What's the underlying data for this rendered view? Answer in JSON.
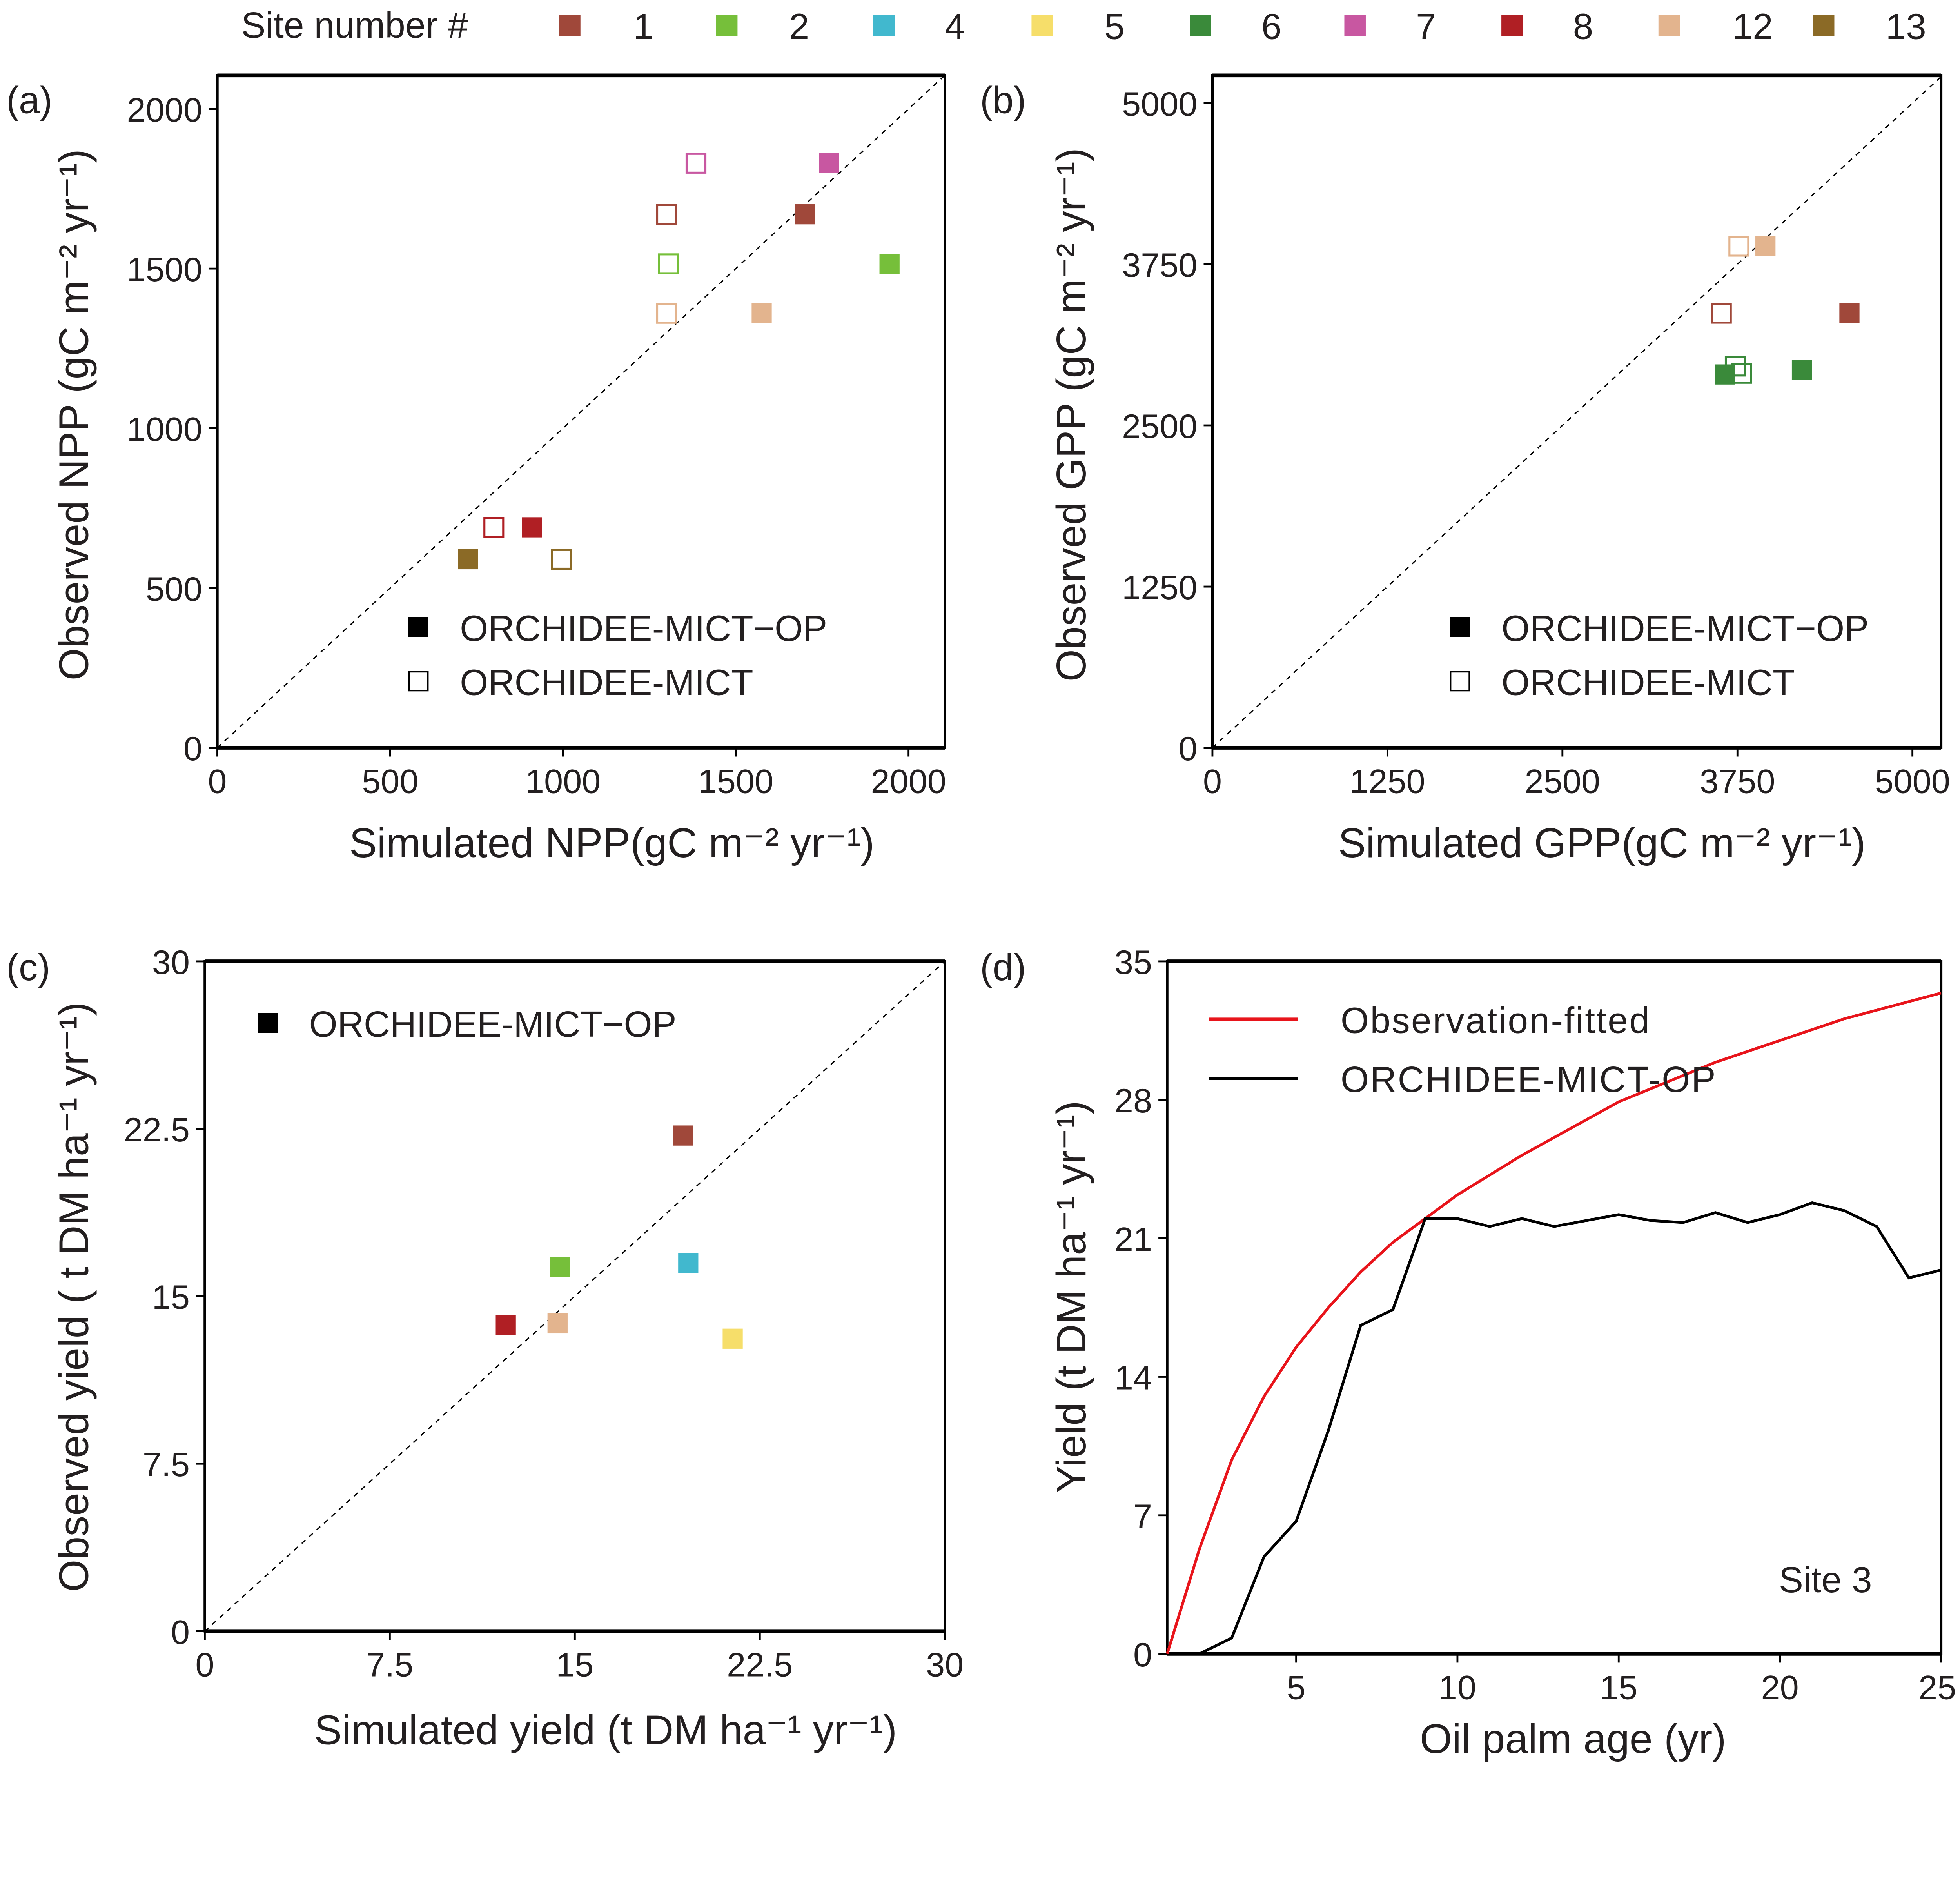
{
  "site_legend": {
    "title": "Site number #",
    "sites": [
      {
        "label": "1",
        "color": "#A0483A"
      },
      {
        "label": "2",
        "color": "#76BF3A"
      },
      {
        "label": "4",
        "color": "#41B8CE"
      },
      {
        "label": "5",
        "color": "#F6DE6A"
      },
      {
        "label": "6",
        "color": "#3A8A3A"
      },
      {
        "label": "7",
        "color": "#C857A1"
      },
      {
        "label": "8",
        "color": "#B01F24"
      },
      {
        "label": "12",
        "color": "#E3B48E"
      },
      {
        "label": "13",
        "color": "#8B6A26"
      }
    ]
  },
  "chart_data": [
    {
      "panel": "(a)",
      "type": "scatter",
      "xlabel": "Simulated NPP(gC m⁻² yr⁻¹)",
      "ylabel": "Observed NPP (gC m⁻² yr⁻¹)",
      "xlim": [
        0,
        2105
      ],
      "ylim": [
        0,
        2105
      ],
      "xticks": [
        0,
        500,
        1000,
        1500,
        2000
      ],
      "yticks": [
        0,
        500,
        1000,
        1500,
        2000
      ],
      "one_to_one_line": true,
      "legend": [
        {
          "label": "ORCHIDEE-MICT−OP",
          "marker": "filled-square"
        },
        {
          "label": "ORCHIDEE-MICT",
          "marker": "open-square"
        }
      ],
      "series": [
        {
          "name": "ORCHIDEE-MICT−OP",
          "marker": "filled",
          "points": [
            {
              "site": "1",
              "x": 1700,
              "y": 1670
            },
            {
              "site": "2",
              "x": 1945,
              "y": 1515
            },
            {
              "site": "7",
              "x": 1770,
              "y": 1830
            },
            {
              "site": "8",
              "x": 910,
              "y": 690
            },
            {
              "site": "12",
              "x": 1575,
              "y": 1360
            },
            {
              "site": "13",
              "x": 725,
              "y": 590
            }
          ]
        },
        {
          "name": "ORCHIDEE-MICT",
          "marker": "open",
          "points": [
            {
              "site": "1",
              "x": 1300,
              "y": 1670
            },
            {
              "site": "2",
              "x": 1305,
              "y": 1515
            },
            {
              "site": "7",
              "x": 1385,
              "y": 1830
            },
            {
              "site": "8",
              "x": 800,
              "y": 690
            },
            {
              "site": "12",
              "x": 1300,
              "y": 1360
            },
            {
              "site": "13",
              "x": 995,
              "y": 590
            }
          ]
        }
      ]
    },
    {
      "panel": "(b)",
      "type": "scatter",
      "xlabel": "Simulated GPP(gC m⁻² yr⁻¹)",
      "ylabel": "Observed GPP (gC m⁻² yr⁻¹)",
      "xlim": [
        0,
        5205
      ],
      "ylim": [
        0,
        5215
      ],
      "xticks": [
        0,
        1250,
        2500,
        3750,
        5000
      ],
      "yticks": [
        0,
        1250,
        2500,
        3750,
        5000
      ],
      "one_to_one_line": true,
      "legend": [
        {
          "label": "ORCHIDEE-MICT−OP",
          "marker": "filled-square"
        },
        {
          "label": "ORCHIDEE-MICT",
          "marker": "open-square"
        }
      ],
      "series": [
        {
          "name": "ORCHIDEE-MICT−OP",
          "marker": "filled",
          "points": [
            {
              "site": "1",
              "x": 4550,
              "y": 3370
            },
            {
              "site": "12",
              "x": 3950,
              "y": 3890
            },
            {
              "site": "6",
              "x": 3662,
              "y": 2895
            },
            {
              "site": "6",
              "x": 4210,
              "y": 2930
            }
          ]
        },
        {
          "name": "ORCHIDEE-MICT",
          "marker": "open",
          "points": [
            {
              "site": "1",
              "x": 3635,
              "y": 3370
            },
            {
              "site": "12",
              "x": 3760,
              "y": 3890
            },
            {
              "site": "6",
              "x": 3734,
              "y": 2960
            },
            {
              "site": "6",
              "x": 3779,
              "y": 2904
            }
          ]
        }
      ]
    },
    {
      "panel": "(c)",
      "type": "scatter",
      "xlabel": "Simulated yield (t DM ha⁻¹ yr⁻¹)",
      "ylabel": "Observed yield ( t DM ha⁻¹ yr⁻¹)",
      "xlim": [
        0,
        30
      ],
      "ylim": [
        0,
        30
      ],
      "xticks": [
        0,
        7.5,
        15,
        22.5,
        30
      ],
      "yticks": [
        0,
        7.5,
        15,
        22.5,
        30
      ],
      "one_to_one_line": true,
      "legend": [
        {
          "label": "ORCHIDEE-MICT−OP",
          "marker": "filled-square"
        }
      ],
      "series": [
        {
          "name": "ORCHIDEE-MICT−OP",
          "marker": "filled",
          "points": [
            {
              "site": "1",
              "x": 19.4,
              "y": 22.2
            },
            {
              "site": "2",
              "x": 14.4,
              "y": 16.3
            },
            {
              "site": "4",
              "x": 19.6,
              "y": 16.5
            },
            {
              "site": "8",
              "x": 12.2,
              "y": 13.7
            },
            {
              "site": "12",
              "x": 14.3,
              "y": 13.8
            },
            {
              "site": "5",
              "x": 21.4,
              "y": 13.1
            }
          ]
        }
      ]
    },
    {
      "panel": "(d)",
      "type": "line",
      "xlabel": "Oil palm age (yr)",
      "ylabel": "Yield (t DM ha⁻¹ yr⁻¹)",
      "xlim": [
        1,
        25
      ],
      "ylim": [
        0,
        35
      ],
      "xticks": [
        5,
        10,
        15,
        20,
        25
      ],
      "yticks": [
        0,
        7,
        14,
        21,
        28,
        35
      ],
      "annotation": "Site 3",
      "series": [
        {
          "name": "Observation-fitted",
          "color": "#E8141B",
          "x": [
            1,
            2,
            3,
            4,
            5,
            6,
            7,
            8,
            9,
            10,
            12,
            15,
            18,
            20,
            22,
            25
          ],
          "y": [
            0,
            5.3,
            9.8,
            13.0,
            15.5,
            17.5,
            19.3,
            20.8,
            22.0,
            23.2,
            25.2,
            27.9,
            29.9,
            31.0,
            32.1,
            33.4
          ]
        },
        {
          "name": "ORCHIDEE-MICT-OP",
          "color": "#000000",
          "x": [
            2,
            3,
            4,
            5,
            6,
            7,
            8,
            9,
            10,
            11,
            12,
            13,
            14,
            15,
            16,
            17,
            18,
            19,
            20,
            21,
            22,
            23,
            24,
            25
          ],
          "y": [
            0,
            0.8,
            4.9,
            6.7,
            11.3,
            16.6,
            17.4,
            22.0,
            22.0,
            21.6,
            22.0,
            21.6,
            21.9,
            22.2,
            21.9,
            21.8,
            22.3,
            21.8,
            22.2,
            22.8,
            22.4,
            21.6,
            19.0,
            19.4
          ]
        }
      ]
    }
  ]
}
